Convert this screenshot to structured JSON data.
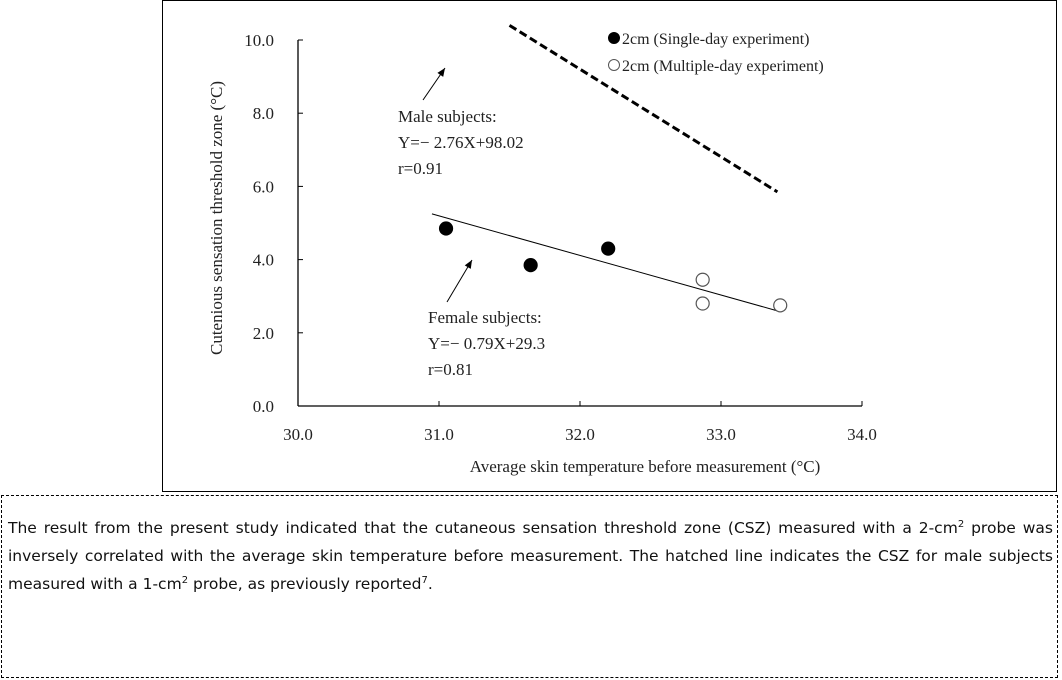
{
  "chart_data": {
    "type": "scatter",
    "xlabel": "Average skin temperature before measurement (°C)",
    "ylabel": "Cutenious sensation threshold zone (°C)",
    "xlim": [
      30.0,
      34.0
    ],
    "ylim": [
      0.0,
      10.0
    ],
    "xticks": [
      "30.0",
      "31.0",
      "32.0",
      "33.0",
      "34.0"
    ],
    "yticks": [
      "0.0",
      "2.0",
      "4.0",
      "6.0",
      "8.0",
      "10.0"
    ],
    "grid": false,
    "legend_placement": "top-right",
    "series": [
      {
        "name": "2cm (Single-day experiment)",
        "marker": "filled-circle",
        "color": "#000000",
        "points": [
          [
            31.05,
            4.85
          ],
          [
            31.65,
            3.85
          ],
          [
            32.2,
            4.3
          ]
        ]
      },
      {
        "name": "2cm (Multiple-day experiment)",
        "marker": "open-circle",
        "color": "#ffffff",
        "points": [
          [
            32.87,
            3.45
          ],
          [
            32.87,
            2.8
          ],
          [
            33.42,
            2.75
          ]
        ]
      }
    ],
    "lines": [
      {
        "style": "dashed",
        "points": [
          [
            31.5,
            10.4
          ],
          [
            33.4,
            5.85
          ]
        ]
      },
      {
        "style": "solid",
        "points": [
          [
            30.95,
            5.25
          ],
          [
            33.4,
            2.6
          ]
        ]
      }
    ],
    "annotations": [
      {
        "lines": [
          "Male subjects:",
          "Y=− 2.76X+98.02",
          "r=0.91"
        ]
      },
      {
        "lines": [
          "Female subjects:",
          "Y=− 0.79X+29.3",
          "r=0.81"
        ]
      }
    ]
  },
  "caption": {
    "part1": "The result from the present study indicated that the cutaneous sensation threshold zone (CSZ) measured with a 2-cm",
    "sup1": "2",
    "part2": " probe was inversely correlated with the average skin temperature before measurement. The hatched line indicates the CSZ for male subjects measured with a 1-cm",
    "sup2": "2",
    "part3": " probe, as previously reported",
    "sup3": "7",
    "part4": "."
  }
}
